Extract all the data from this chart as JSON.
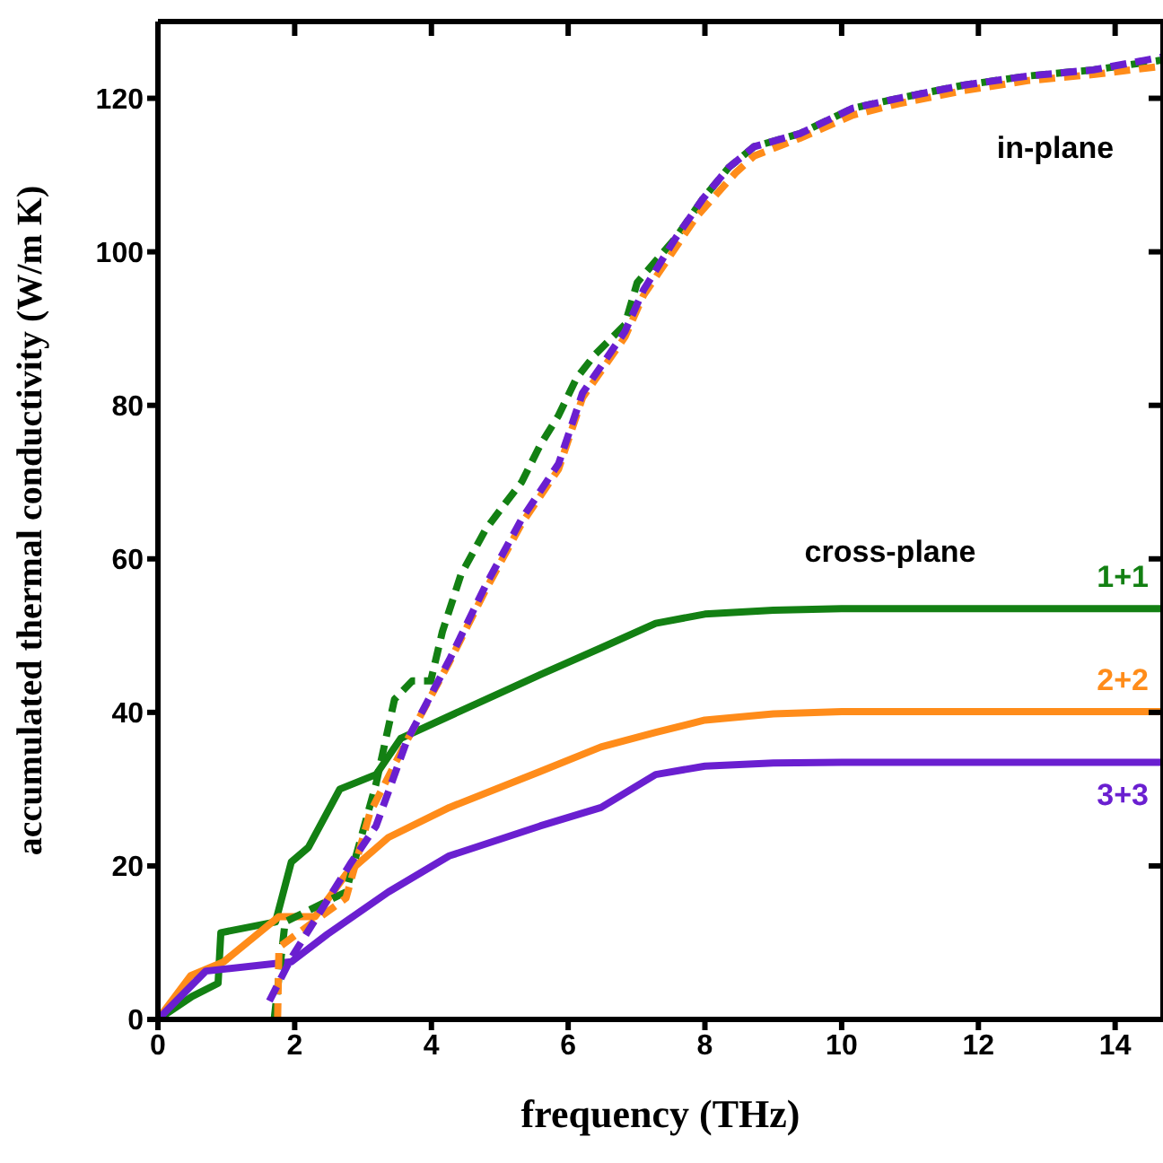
{
  "chart_data": {
    "type": "line",
    "xlabel": "frequency (THz)",
    "ylabel": "accumulated thermal conductivity (W/m K)",
    "xlim": [
      0,
      14.7
    ],
    "ylim": [
      0,
      130
    ],
    "xticks": [
      0,
      2,
      4,
      6,
      8,
      10,
      12,
      14
    ],
    "yticks": [
      0,
      20,
      40,
      60,
      80,
      100,
      120
    ],
    "legend": false,
    "marker": "none",
    "annotations": [
      "in-plane",
      "cross-plane"
    ],
    "series": [
      {
        "name": "1+1",
        "color": "#138013",
        "line_style": "solid",
        "x": [
          0,
          0.5,
          0.88,
          0.92,
          1.72,
          1.95,
          2.2,
          2.66,
          3.19,
          3.55,
          4.43,
          5.59,
          6.48,
          7.28,
          8,
          9,
          10,
          12,
          14.7
        ],
        "values": [
          0,
          3,
          4.7,
          11.3,
          12.7,
          20.5,
          22.4,
          30,
          31.9,
          36.6,
          40.2,
          44.9,
          48.4,
          51.6,
          52.8,
          53.3,
          53.5,
          53.5,
          53.5
        ]
      },
      {
        "name": "2+2",
        "color": "#ff8c1a",
        "line_style": "solid",
        "x": [
          0,
          0.48,
          0.96,
          1.77,
          2.3,
          2.75,
          3.37,
          4.26,
          5.59,
          6.48,
          7.28,
          8,
          9,
          10,
          12,
          14.7
        ],
        "values": [
          0,
          5.7,
          7.5,
          13.4,
          13.4,
          18.9,
          23.7,
          27.6,
          32.3,
          35.5,
          37.4,
          39,
          39.8,
          40.1,
          40.1,
          40.1
        ]
      },
      {
        "name": "3+3",
        "color": "#6a1fd0",
        "line_style": "solid",
        "x": [
          0,
          0.7,
          1.95,
          2.48,
          3.37,
          4.26,
          5.59,
          6.48,
          7.28,
          8,
          9,
          10,
          12,
          14.7
        ],
        "values": [
          0,
          6.3,
          7.5,
          11.1,
          16.6,
          21.3,
          25.2,
          27.6,
          31.9,
          33,
          33.4,
          33.5,
          33.5,
          33.5
        ]
      },
      {
        "color": "#138013",
        "line_style": "dashed",
        "x": [
          1.7,
          1.86,
          2.75,
          3.19,
          3.46,
          3.72,
          3.99,
          4.16,
          4.43,
          4.79,
          5.06,
          5.32,
          5.59,
          5.86,
          6.12,
          6.39,
          6.83,
          7.01,
          7.28,
          7.58,
          7.97,
          8.35,
          8.72,
          9.39,
          10.16,
          10.83,
          11.78,
          12.72,
          13.68,
          14.7
        ],
        "values": [
          0,
          12.7,
          16.6,
          30.7,
          41.7,
          44.1,
          44.1,
          50.5,
          57.9,
          63.8,
          67,
          70,
          74.8,
          78.7,
          83.5,
          86.6,
          90.5,
          96,
          98.8,
          101.9,
          106.9,
          111,
          113.7,
          115.4,
          118.7,
          120,
          121.7,
          122.9,
          123.7,
          125
        ]
      },
      {
        "color": "#ff8c1a",
        "line_style": "dashed",
        "x": [
          1.75,
          1.77,
          2.75,
          3.1,
          3.64,
          4.26,
          4.79,
          5.32,
          5.86,
          6.21,
          6.83,
          7.1,
          7.87,
          8.45,
          8.72,
          9.39,
          10.16,
          10.83,
          11.78,
          12.72,
          13.68,
          14.7
        ],
        "values": [
          0,
          9.4,
          15.8,
          26.9,
          36.3,
          46.5,
          55.9,
          64.6,
          71.7,
          81,
          88.9,
          94.3,
          104.5,
          110.3,
          112.5,
          114.8,
          117.8,
          119.3,
          121,
          122.3,
          123.1,
          124.2
        ]
      },
      {
        "color": "#6a1fd0",
        "line_style": "dashed",
        "x": [
          1.63,
          1.95,
          2.83,
          3.19,
          3.64,
          4.26,
          4.79,
          5.32,
          5.86,
          6.21,
          6.83,
          7.1,
          7.58,
          7.97,
          8.35,
          8.72,
          9.39,
          10.16,
          10.83,
          11.78,
          12.72,
          13.68,
          14.7
        ],
        "values": [
          2.4,
          8,
          20.5,
          25.2,
          36.3,
          46.8,
          56.5,
          65.2,
          72.4,
          81.6,
          89.6,
          95,
          101.9,
          106.9,
          111,
          113.7,
          115.4,
          118.7,
          120,
          121.7,
          122.9,
          123.7,
          125.4
        ]
      }
    ]
  }
}
